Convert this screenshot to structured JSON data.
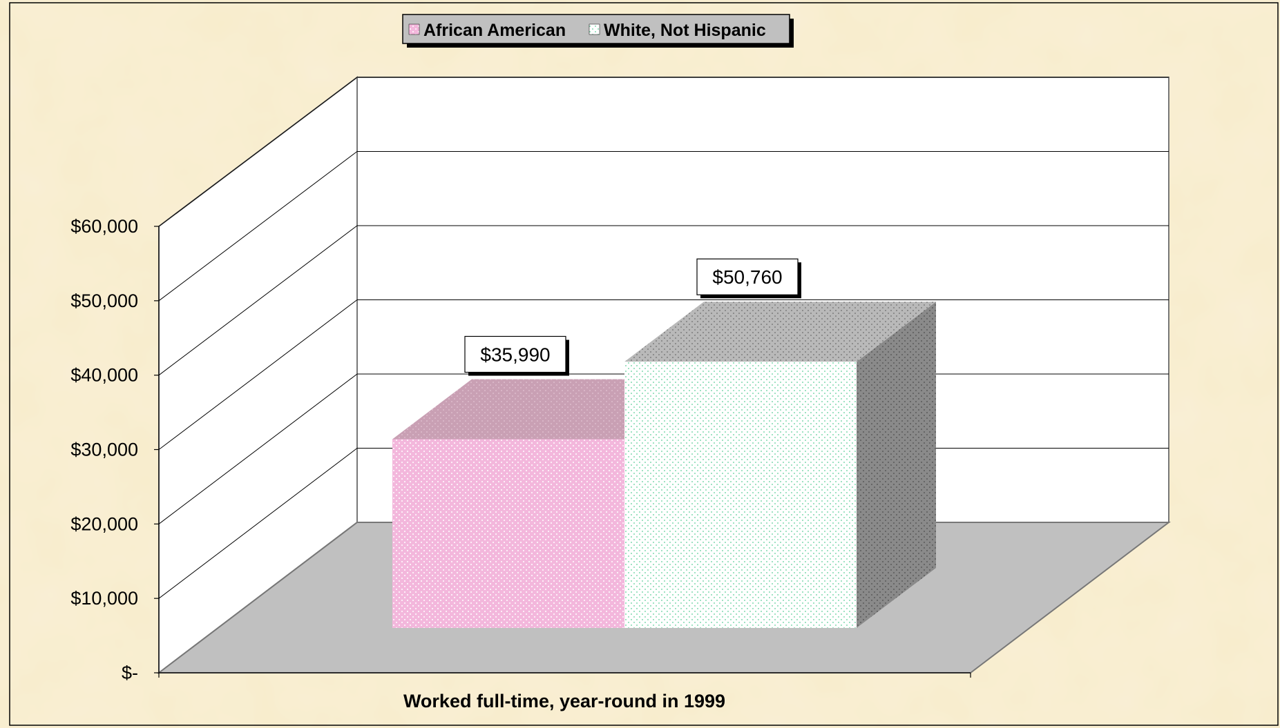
{
  "legend": {
    "items": [
      {
        "label": "African American",
        "color": "#f3b7dc"
      },
      {
        "label": "White, Not Hispanic",
        "color": "#ffffff"
      }
    ]
  },
  "colors": {
    "background": "#f8eccb",
    "floor": "#c0c0c0",
    "wall": "#ffffff",
    "gridline": "#000000",
    "aa_front": "#f3b7dc",
    "aa_top": "#c9a0b4",
    "white_front": "#ffffff",
    "white_dots": "#2fbf7a",
    "white_top": "#b9b9b9",
    "white_side": "#8a8a8a"
  },
  "chart_data": {
    "type": "bar",
    "categories": [
      "Worked full-time, year-round in 1999"
    ],
    "series": [
      {
        "name": "African American",
        "values": [
          35990
        ]
      },
      {
        "name": "White, Not Hispanic",
        "values": [
          50760
        ]
      }
    ],
    "data_labels": [
      "$35,990",
      "$50,760"
    ],
    "xlabel": "Worked full-time, year-round in 1999",
    "ylabel": "",
    "ylim": [
      0,
      60000
    ],
    "yticks": [
      0,
      10000,
      20000,
      30000,
      40000,
      50000,
      60000
    ],
    "ytick_labels": [
      "$-",
      "$10,000",
      "$20,000",
      "$30,000",
      "$40,000",
      "$50,000",
      "$60,000"
    ],
    "grid": true,
    "legend_position": "top-center",
    "style": "3d-column"
  }
}
